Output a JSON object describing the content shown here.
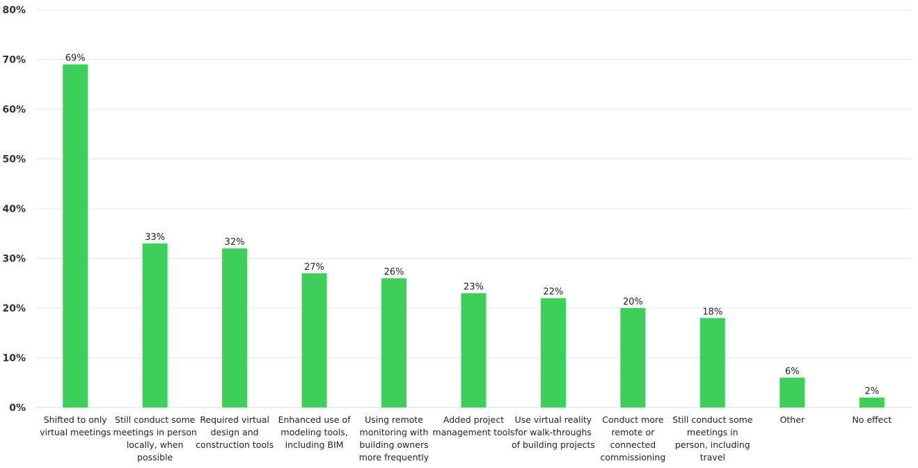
{
  "chart_data": {
    "type": "bar",
    "title": "",
    "xlabel": "",
    "ylabel": "",
    "ylim": [
      0,
      80
    ],
    "yticks": [
      "0%",
      "10%",
      "20%",
      "30%",
      "40%",
      "50%",
      "60%",
      "70%",
      "80%"
    ],
    "grid": true,
    "bar_color": "#3ecf5a",
    "categories": [
      [
        "Shifted to only",
        "virtual meetings"
      ],
      [
        "Still conduct some",
        "meetings in person",
        "locally, when",
        "possible"
      ],
      [
        "Required virtual",
        "design and",
        "construction tools"
      ],
      [
        "Enhanced use of",
        "modeling tools,",
        "including BIM"
      ],
      [
        "Using remote",
        "monitoring with",
        "building owners",
        "more frequently"
      ],
      [
        "Added project",
        "management tools"
      ],
      [
        "Use virtual reality",
        "for walk-throughs",
        "of building projects"
      ],
      [
        "Conduct more",
        "remote or",
        "connected",
        "commissioning"
      ],
      [
        "Still conduct some",
        "meetings in",
        "person, including",
        "travel"
      ],
      [
        "Other"
      ],
      [
        "No effect"
      ]
    ],
    "values": [
      69,
      33,
      32,
      27,
      26,
      23,
      22,
      20,
      18,
      6,
      2
    ],
    "data_labels": [
      "69%",
      "33%",
      "32%",
      "27%",
      "26%",
      "23%",
      "22%",
      "20%",
      "18%",
      "6%",
      "2%"
    ]
  }
}
